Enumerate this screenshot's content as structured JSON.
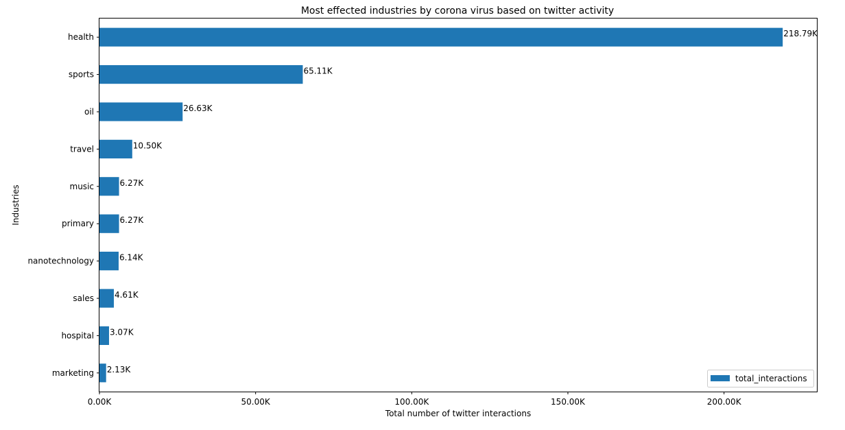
{
  "chart_data": {
    "type": "bar",
    "orientation": "horizontal",
    "title": "Most effected industries by corona virus based on twitter activity",
    "xlabel": "Total number of twitter interactions",
    "ylabel": "Industries",
    "categories": [
      "health",
      "sports",
      "oil",
      "travel",
      "music",
      "primary",
      "nanotechnology",
      "sales",
      "hospital",
      "marketing"
    ],
    "series": [
      {
        "name": "total_interactions",
        "values": [
          218790,
          65110,
          26630,
          10500,
          6270,
          6270,
          6140,
          4610,
          3070,
          2130
        ],
        "labels": [
          "218.79K",
          "65.11K",
          "26.63K",
          "10.50K",
          "6.27K",
          "6.27K",
          "6.14K",
          "4.61K",
          "3.07K",
          "2.13K"
        ]
      }
    ],
    "xlim": [
      0,
      229729
    ],
    "xticks": [
      0,
      50000,
      100000,
      150000,
      200000
    ],
    "xtick_labels": [
      "0.00K",
      "50.00K",
      "100.00K",
      "150.00K",
      "200.00K"
    ],
    "grid": false,
    "legend_position": "lower-right",
    "bar_color": "#1f77b4"
  }
}
